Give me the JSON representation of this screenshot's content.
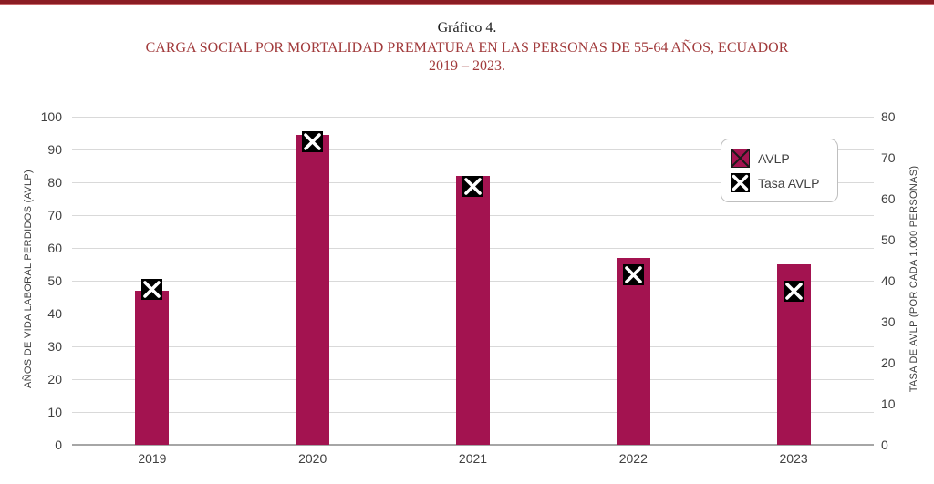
{
  "header": {
    "title": "Gráfico 4.",
    "subtitle": "CARGA SOCIAL POR MORTALIDAD PREMATURA EN LAS PERSONAS DE 55-64 AÑOS, ECUADOR",
    "period": "2019 – 2023."
  },
  "chart_data": {
    "type": "bar",
    "categories": [
      "2019",
      "2020",
      "2021",
      "2022",
      "2023"
    ],
    "series": [
      {
        "name": "AVLP",
        "type": "bar",
        "axis": "left",
        "values": [
          47,
          94.5,
          82,
          57,
          55
        ],
        "color": "#A31350"
      },
      {
        "name": "Tasa AVLP",
        "type": "scatter",
        "axis": "right",
        "values": [
          38,
          74,
          63,
          41.5,
          37.5
        ],
        "marker": "black-square-white-x",
        "marker_fill": "#000000",
        "marker_x_color": "#FFFFFF"
      }
    ],
    "left_axis": {
      "label": "AÑOS DE VIDA LABORAL PERDIDOS (AVLP)",
      "min": 0,
      "max": 100,
      "step": 10,
      "ticks": [
        0,
        10,
        20,
        30,
        40,
        50,
        60,
        70,
        80,
        90,
        100
      ]
    },
    "right_axis": {
      "label": "TASA DE AVLP (POR CADA 1.000 PERSONAS)",
      "min": 0,
      "max": 80,
      "step": 10,
      "ticks": [
        0,
        10,
        20,
        30,
        40,
        50,
        60,
        70,
        80
      ]
    },
    "grid": true,
    "legend_position": "top-right",
    "title": "Gráfico 4.",
    "xlabel": "",
    "ylabel_left": "AÑOS DE VIDA LABORAL PERDIDOS (AVLP)",
    "ylabel_right": "TASA DE AVLP (POR CADA 1.000 PERSONAS)"
  },
  "colors": {
    "accent_bar": "#A31350",
    "title_red": "#A13A3B",
    "top_border_dark": "#8B1D24",
    "top_border_light": "#C9696C",
    "gridline": "#D9D9D9",
    "axis_line": "#A6A6A6",
    "axis_text": "#404040",
    "legend_border": "#BFBFBF"
  }
}
